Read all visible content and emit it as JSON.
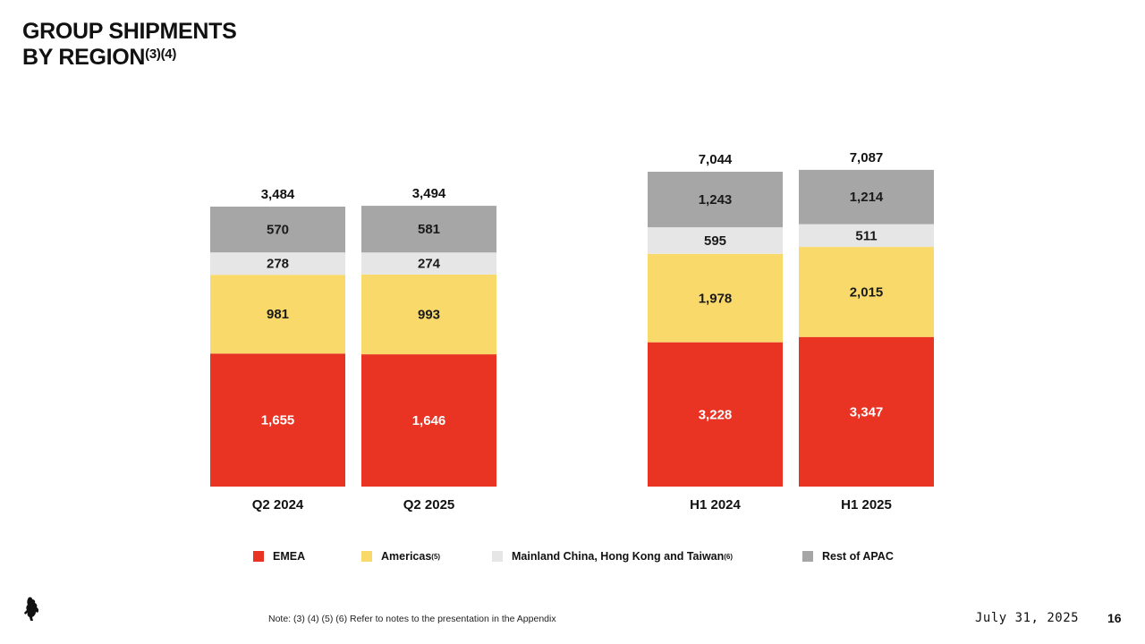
{
  "title": {
    "line1": "GROUP SHIPMENTS",
    "line2": "BY REGION",
    "notes": "(3)(4)"
  },
  "chart_data": {
    "type": "bar",
    "stacked": true,
    "categories": [
      "Q2 2024",
      "Q2 2025",
      "H1 2024",
      "H1 2025"
    ],
    "totals": [
      "3,484",
      "3,494",
      "7,044",
      "7,087"
    ],
    "series": [
      {
        "name": "EMEA",
        "color": "#e93323",
        "values": [
          1655,
          1646,
          3228,
          3347
        ],
        "labels": [
          "1,655",
          "1,646",
          "3,228",
          "3,347"
        ]
      },
      {
        "name": "Americas",
        "color": "#f8d969",
        "values": [
          981,
          993,
          1978,
          2015
        ],
        "labels": [
          "981",
          "993",
          "1,978",
          "2,015"
        ]
      },
      {
        "name": "Mainland China, Hong Kong and Taiwan",
        "color": "#e6e6e6",
        "values": [
          278,
          274,
          595,
          511
        ],
        "labels": [
          "278",
          "274",
          "595",
          "511"
        ]
      },
      {
        "name": "Rest of APAC",
        "color": "#a6a6a6",
        "values": [
          570,
          581,
          1243,
          1214
        ],
        "labels": [
          "570",
          "581",
          "1,243",
          "1,214"
        ]
      }
    ],
    "groups": [
      {
        "categories": [
          "Q2 2024",
          "Q2 2025"
        ]
      },
      {
        "categories": [
          "H1 2024",
          "H1 2025"
        ]
      }
    ],
    "grid": false,
    "legend_position": "bottom"
  },
  "legend": {
    "items": [
      {
        "label": "EMEA",
        "sup": ""
      },
      {
        "label": "Americas",
        "sup": "(5)"
      },
      {
        "label": "Mainland China, Hong Kong and Taiwan",
        "sup": "(6)"
      },
      {
        "label": "Rest of APAC",
        "sup": ""
      }
    ]
  },
  "footer": {
    "note": "Note: (3) (4) (5) (6) Refer to notes to the presentation in the Appendix",
    "date": "July 31, 2025",
    "page": "16"
  },
  "logo": {
    "icon": "prancing-horse-icon"
  }
}
